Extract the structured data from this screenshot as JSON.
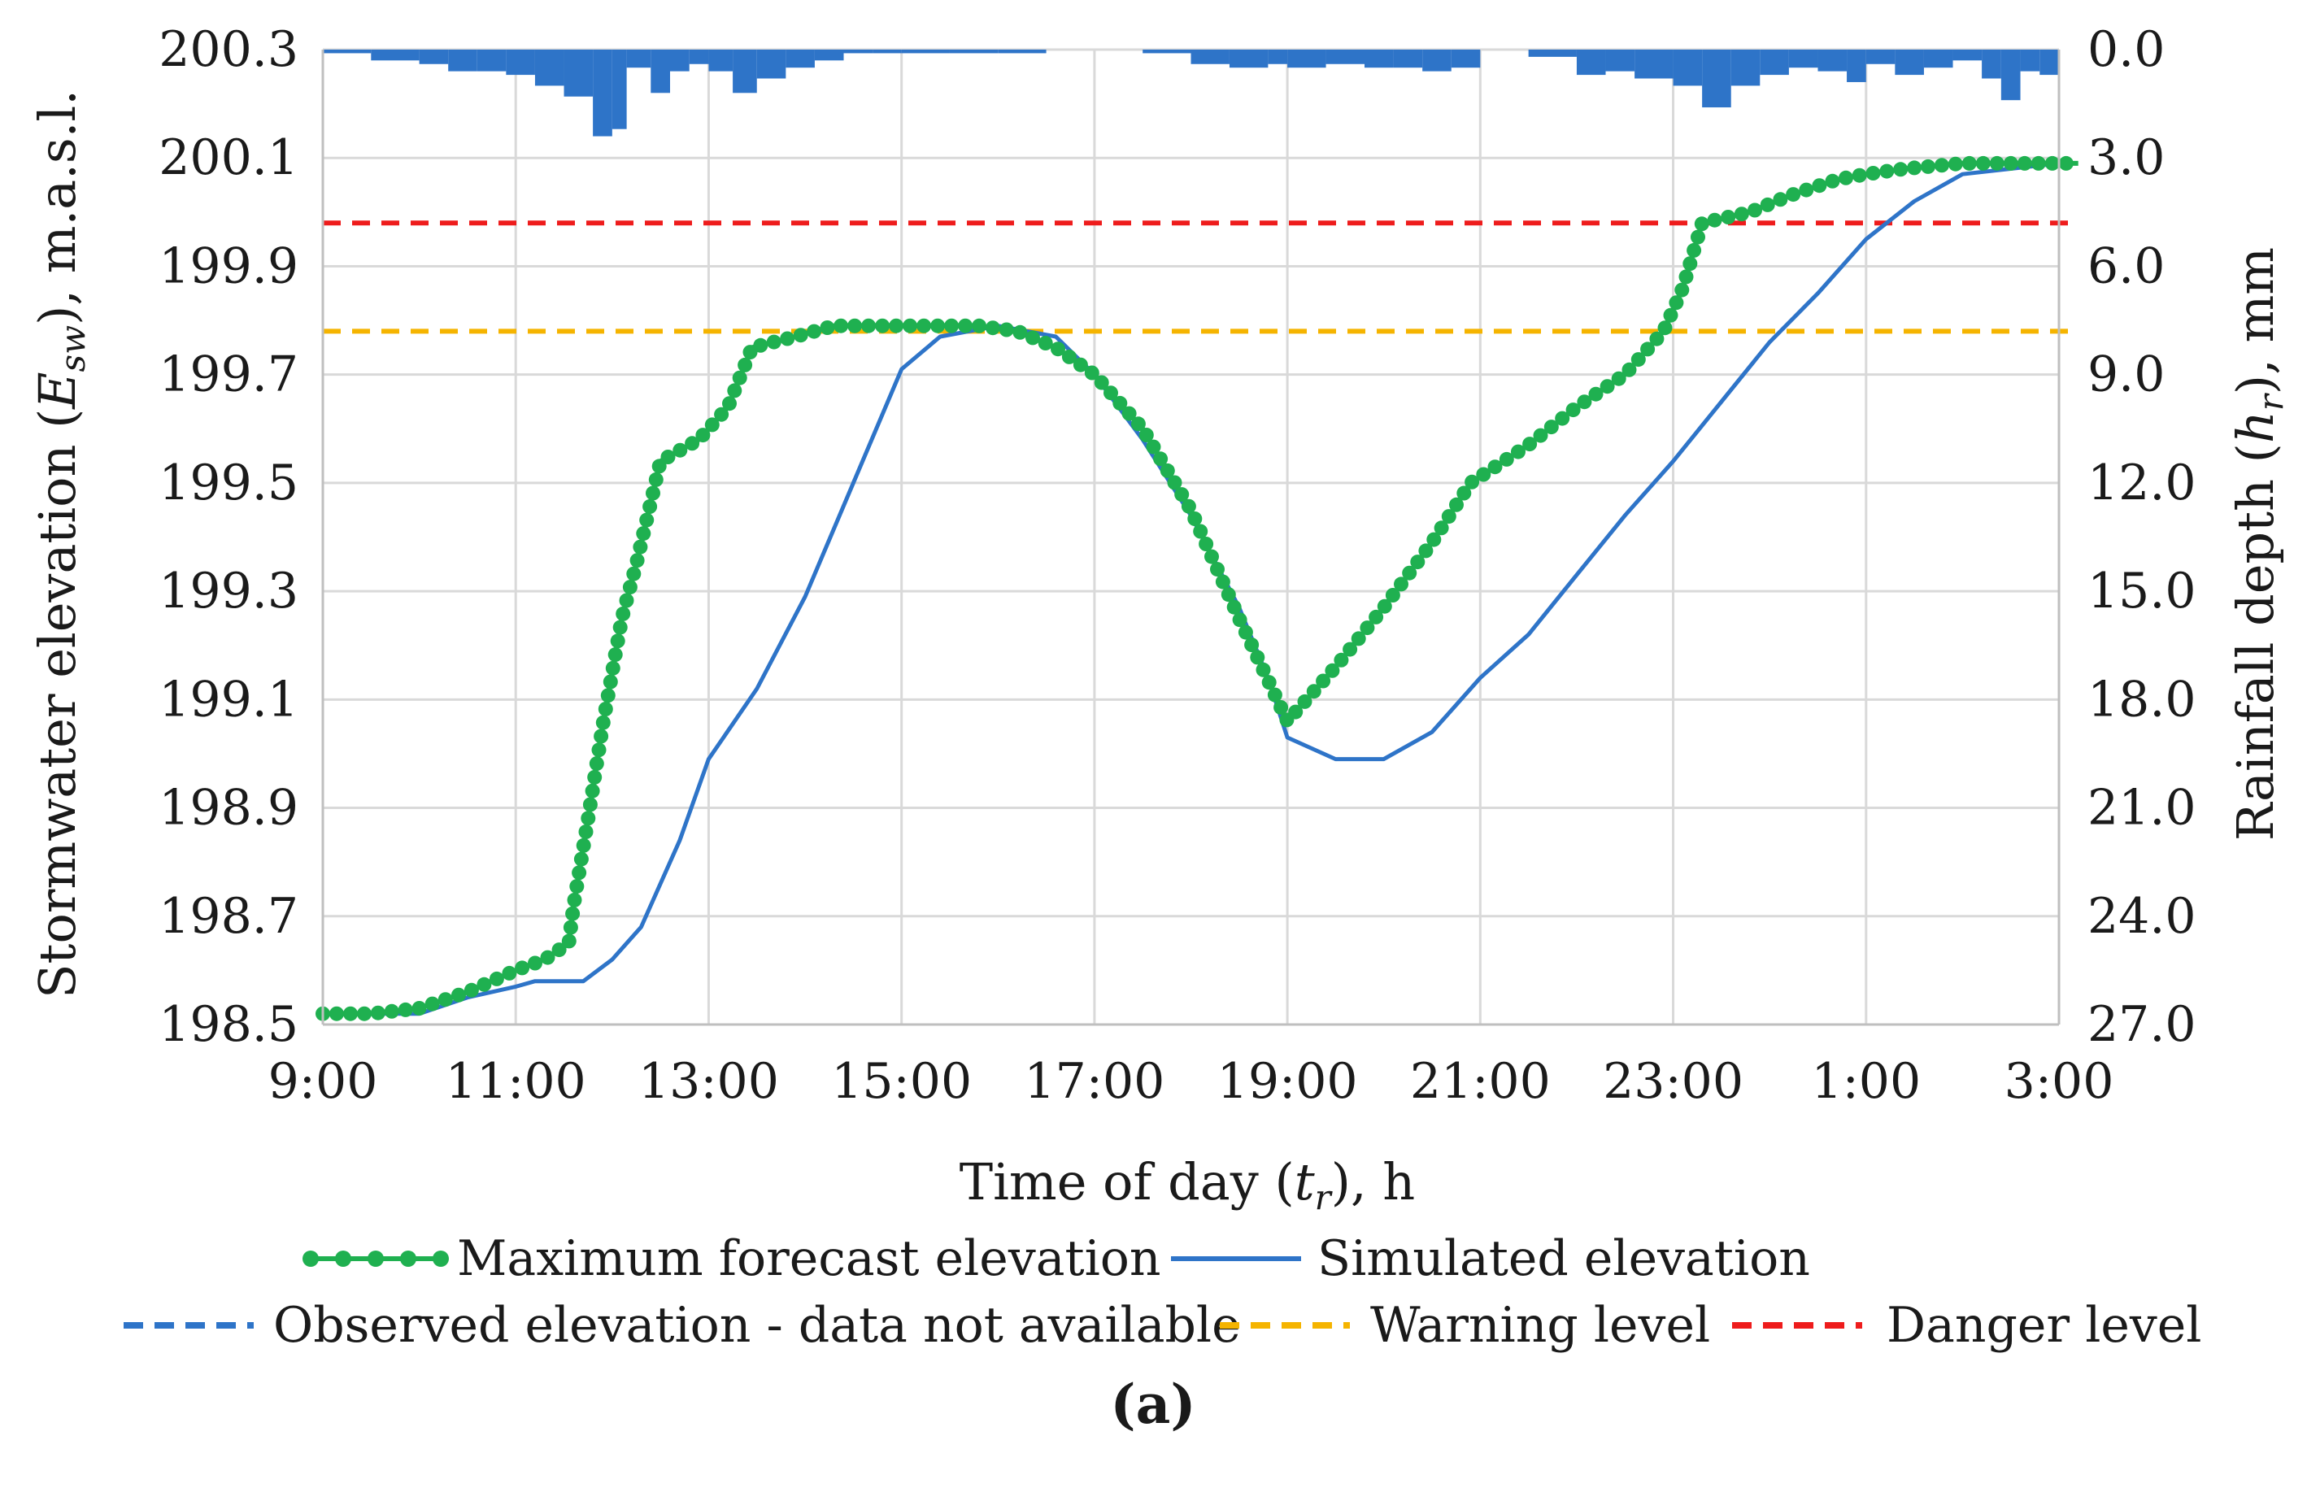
{
  "chart_data": {
    "type": "line",
    "title": "",
    "panel_label": "(a)",
    "xlabel": {
      "text": "Time of day (",
      "symbol": "t",
      "subscript": "r",
      "suffix": "), h"
    },
    "ylabel": {
      "text": "Stormwater elevation (",
      "symbol": "E",
      "subscript": "sw",
      "suffix": "),  m.a.s.l."
    },
    "y2label": {
      "text": "Rainfall depth (",
      "symbol": "h",
      "subscript": "r",
      "suffix": "), mm"
    },
    "xlim": [
      9,
      27
    ],
    "ylim": [
      198.5,
      200.3
    ],
    "y2lim": [
      27.0,
      0.0
    ],
    "y2_inverted": true,
    "grid": true,
    "x_ticks": [
      {
        "value": 9,
        "label": "9:00"
      },
      {
        "value": 11,
        "label": "11:00"
      },
      {
        "value": 13,
        "label": "13:00"
      },
      {
        "value": 15,
        "label": "15:00"
      },
      {
        "value": 17,
        "label": "17:00"
      },
      {
        "value": 19,
        "label": "19:00"
      },
      {
        "value": 21,
        "label": "21:00"
      },
      {
        "value": 23,
        "label": "23:00"
      },
      {
        "value": 25,
        "label": "1:00"
      },
      {
        "value": 27,
        "label": "3:00"
      }
    ],
    "y_ticks": [
      {
        "value": 198.5,
        "label": "198.5"
      },
      {
        "value": 198.7,
        "label": "198.7"
      },
      {
        "value": 198.9,
        "label": "198.9"
      },
      {
        "value": 199.1,
        "label": "199.1"
      },
      {
        "value": 199.3,
        "label": "199.3"
      },
      {
        "value": 199.5,
        "label": "199.5"
      },
      {
        "value": 199.7,
        "label": "199.7"
      },
      {
        "value": 199.9,
        "label": "199.9"
      },
      {
        "value": 200.1,
        "label": "200.1"
      },
      {
        "value": 200.3,
        "label": "200.3"
      }
    ],
    "y2_ticks": [
      {
        "value": 0.0,
        "label": "0.0"
      },
      {
        "value": 3.0,
        "label": "3.0"
      },
      {
        "value": 6.0,
        "label": "6.0"
      },
      {
        "value": 9.0,
        "label": "9.0"
      },
      {
        "value": 12.0,
        "label": "12.0"
      },
      {
        "value": 15.0,
        "label": "15.0"
      },
      {
        "value": 18.0,
        "label": "18.0"
      },
      {
        "value": 21.0,
        "label": "21.0"
      },
      {
        "value": 24.0,
        "label": "24.0"
      },
      {
        "value": 27.0,
        "label": "27.0"
      }
    ],
    "series": [
      {
        "name": "Maximum forecast elevation",
        "color": "#1fb050",
        "style": "line-markers",
        "x": [
          9.0,
          9.5,
          10.0,
          10.5,
          11.0,
          11.3,
          11.55,
          11.6,
          11.75,
          11.9,
          12.1,
          12.25,
          12.5,
          12.9,
          13.2,
          13.45,
          13.9,
          14.3,
          15.0,
          15.8,
          16.2,
          16.6,
          17.0,
          17.5,
          18.0,
          18.5,
          19.0,
          19.5,
          20.0,
          20.5,
          20.9,
          21.5,
          22.0,
          22.5,
          22.9,
          23.1,
          23.3,
          23.8,
          24.2,
          24.7,
          25.0,
          25.4,
          26.0,
          27.2
        ],
        "y": [
          198.52,
          198.52,
          198.53,
          198.56,
          198.6,
          198.62,
          198.65,
          198.72,
          198.88,
          199.05,
          199.25,
          199.35,
          199.54,
          199.58,
          199.64,
          199.75,
          199.77,
          199.79,
          199.79,
          199.79,
          199.78,
          199.75,
          199.7,
          199.6,
          199.45,
          199.25,
          199.06,
          199.16,
          199.27,
          199.39,
          199.5,
          199.57,
          199.64,
          199.7,
          199.78,
          199.86,
          199.98,
          200.0,
          200.03,
          200.06,
          200.07,
          200.08,
          200.09,
          200.09
        ]
      },
      {
        "name": "Simulated elevation",
        "color": "#2e74c8",
        "style": "line",
        "x": [
          9.0,
          10.0,
          10.5,
          11.0,
          11.2,
          11.7,
          12.0,
          12.3,
          12.7,
          13.0,
          13.5,
          14.0,
          14.5,
          15.0,
          15.4,
          16.0,
          16.6,
          17.0,
          17.5,
          18.0,
          18.5,
          18.8,
          19.0,
          19.5,
          20.0,
          20.5,
          21.0,
          21.5,
          22.0,
          22.5,
          23.0,
          23.5,
          24.0,
          24.5,
          25.0,
          25.5,
          26.0,
          27.0
        ],
        "y": [
          198.52,
          198.52,
          198.55,
          198.57,
          198.58,
          198.58,
          198.62,
          198.68,
          198.84,
          198.99,
          199.12,
          199.29,
          199.5,
          199.71,
          199.77,
          199.79,
          199.77,
          199.7,
          199.58,
          199.44,
          199.27,
          199.14,
          199.03,
          198.99,
          198.99,
          199.04,
          199.14,
          199.22,
          199.33,
          199.44,
          199.54,
          199.65,
          199.76,
          199.85,
          199.95,
          200.02,
          200.07,
          200.09
        ]
      },
      {
        "name": "Observed elevation - data not available",
        "color": "#2e74c8",
        "style": "dashed",
        "x": [],
        "y": []
      },
      {
        "name": "Warning level",
        "color": "#f5b400",
        "style": "dashed",
        "x": [
          9.0,
          27.2
        ],
        "y": [
          199.78,
          199.78
        ]
      },
      {
        "name": "Danger level",
        "color": "#ee1c1c",
        "style": "dashed",
        "x": [
          9.0,
          27.2
        ],
        "y": [
          199.98,
          199.98
        ]
      }
    ],
    "rainfall": {
      "color": "#2e74c8",
      "x": [
        9.0,
        9.5,
        10.0,
        10.3,
        10.6,
        10.9,
        11.2,
        11.5,
        11.8,
        12.0,
        12.15,
        12.4,
        12.6,
        12.8,
        13.0,
        13.25,
        13.5,
        13.8,
        14.1,
        14.4,
        14.7,
        15.0,
        15.5,
        16.0,
        16.5,
        17.0,
        17.5,
        18.0,
        18.4,
        18.8,
        19.0,
        19.4,
        19.8,
        20.1,
        20.4,
        20.7,
        21.0,
        21.5,
        22.0,
        22.3,
        22.6,
        23.0,
        23.3,
        23.6,
        23.9,
        24.2,
        24.5,
        24.8,
        25.0,
        25.3,
        25.6,
        25.9,
        26.2,
        26.4,
        26.6,
        26.8,
        27.0
      ],
      "y": [
        0.1,
        0.3,
        0.4,
        0.6,
        0.6,
        0.7,
        1.0,
        1.3,
        2.4,
        2.2,
        0.5,
        1.2,
        0.6,
        0.4,
        0.6,
        1.2,
        0.8,
        0.5,
        0.3,
        0.1,
        0.1,
        0.1,
        0.1,
        0.1,
        0.0,
        0.0,
        0.1,
        0.4,
        0.5,
        0.4,
        0.5,
        0.4,
        0.5,
        0.5,
        0.6,
        0.5,
        0.0,
        0.2,
        0.7,
        0.6,
        0.8,
        1.0,
        1.6,
        1.0,
        0.7,
        0.5,
        0.6,
        0.9,
        0.4,
        0.7,
        0.5,
        0.3,
        0.8,
        1.4,
        0.6,
        0.7,
        0.4
      ]
    }
  }
}
